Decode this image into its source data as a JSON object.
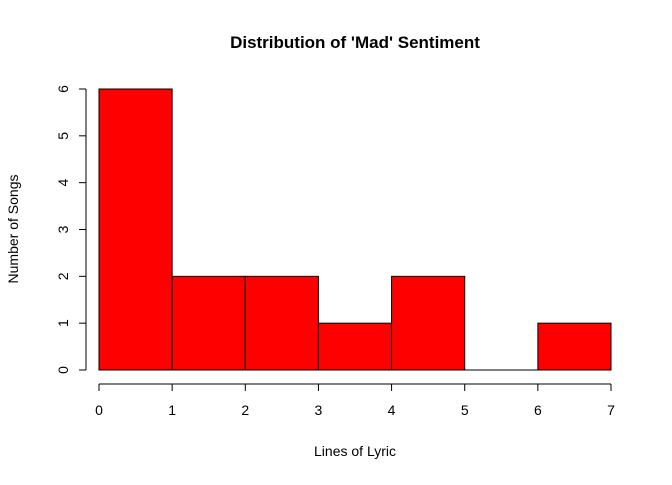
{
  "chart_data": {
    "type": "bar",
    "title": "Distribution of 'Mad' Sentiment",
    "xlabel": "Lines of Lyric",
    "ylabel": "Number of Songs",
    "bins": [
      {
        "start": 0,
        "end": 1,
        "count": 6
      },
      {
        "start": 1,
        "end": 2,
        "count": 2
      },
      {
        "start": 2,
        "end": 3,
        "count": 2
      },
      {
        "start": 3,
        "end": 4,
        "count": 1
      },
      {
        "start": 4,
        "end": 5,
        "count": 2
      },
      {
        "start": 5,
        "end": 6,
        "count": 0
      },
      {
        "start": 6,
        "end": 7,
        "count": 1
      }
    ],
    "xlim": [
      0,
      7
    ],
    "ylim": [
      0,
      6
    ],
    "x_ticks": [
      "0",
      "1",
      "2",
      "3",
      "4",
      "5",
      "6",
      "7"
    ],
    "y_ticks": [
      "0",
      "1",
      "2",
      "3",
      "4",
      "5",
      "6"
    ],
    "bar_color": "#ff0000",
    "grid": false
  }
}
